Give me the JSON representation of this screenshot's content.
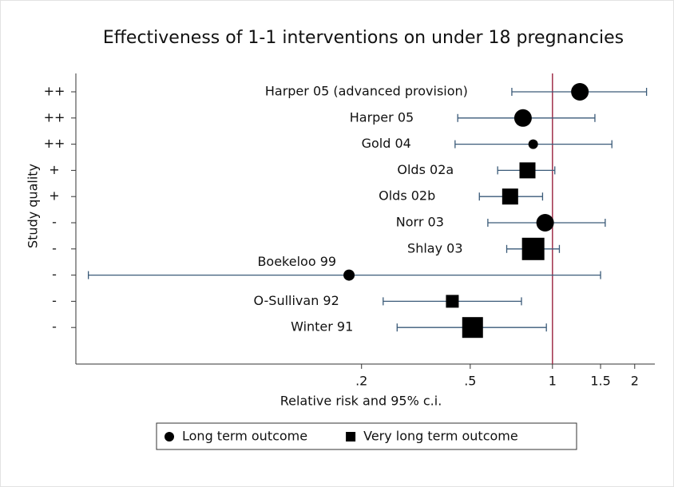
{
  "chart_data": {
    "type": "forest",
    "title": "Effectiveness of 1-1 interventions on under 18 pregnancies",
    "xlabel": "Relative risk and 95% c.i.",
    "ylabel": "Study quality",
    "categories": [
      "Harper 05 (advanced provision)",
      "Harper 05",
      "Gold 04",
      "Olds 02a",
      "Olds 02b",
      "Norr 03",
      "Shlay 03",
      "Boekeloo 99",
      "O-Sullivan 92",
      "Winter 91"
    ],
    "quality": [
      "++",
      "++",
      "++",
      "+",
      "+",
      "-",
      "-",
      "-",
      "-",
      "-"
    ],
    "values": [
      1.26,
      0.78,
      0.85,
      0.81,
      0.7,
      0.94,
      0.85,
      0.18,
      0.43,
      0.51
    ],
    "lower": [
      0.71,
      0.45,
      0.44,
      0.63,
      0.54,
      0.58,
      0.68,
      0.02,
      0.24,
      0.27
    ],
    "upper": [
      2.21,
      1.43,
      1.65,
      1.02,
      0.92,
      1.56,
      1.06,
      1.5,
      0.77,
      0.95
    ],
    "markers": [
      "circle",
      "circle",
      "circle",
      "square",
      "square",
      "circle",
      "square",
      "circle",
      "square",
      "square"
    ],
    "sizes": [
      11,
      11,
      6,
      10,
      10,
      11,
      14,
      7,
      8,
      13
    ],
    "legend": [
      {
        "name": "Long term outcome",
        "marker": "circle"
      },
      {
        "name": "Very long term outcome",
        "marker": "square"
      }
    ],
    "xlim": [
      0.018,
      2.37
    ],
    "xticks": [
      {
        "value": 0.2,
        "label": ".2"
      },
      {
        "value": 0.5,
        "label": ".5"
      },
      1,
      1.5,
      2
    ],
    "log_x": true,
    "reference_line": 1,
    "reference_color": "#a0304a",
    "ci_color": "#3a5a78",
    "color": "#000000"
  }
}
